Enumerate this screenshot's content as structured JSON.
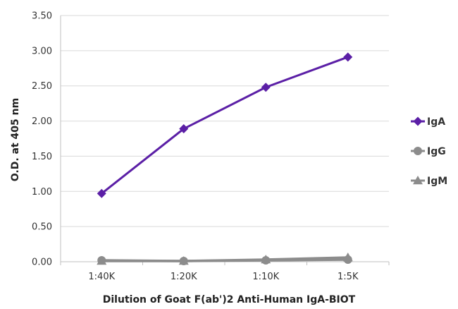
{
  "chart_data": {
    "type": "line",
    "title": "",
    "xlabel": "Dilution of Goat F(ab')2 Anti-Human IgA-BIOT",
    "ylabel": "O.D. at 405 nm",
    "categories": [
      "1:40K",
      "1:20K",
      "1:10K",
      "1:5K"
    ],
    "ylim": [
      0,
      3.5
    ],
    "yticks": [
      "0.00",
      "0.50",
      "1.00",
      "1.50",
      "2.00",
      "2.50",
      "3.00",
      "3.50"
    ],
    "grid": true,
    "legend_position": "right",
    "series": [
      {
        "name": "IgA",
        "values": [
          0.97,
          1.89,
          2.48,
          2.91
        ],
        "color": "#5b1fa6",
        "marker": "diamond"
      },
      {
        "name": "IgG",
        "values": [
          0.02,
          0.01,
          0.02,
          0.03
        ],
        "color": "#8c8c8c",
        "marker": "circle"
      },
      {
        "name": "IgM",
        "values": [
          0.01,
          0.01,
          0.03,
          0.06
        ],
        "color": "#8c8c8c",
        "marker": "triangle"
      }
    ]
  }
}
